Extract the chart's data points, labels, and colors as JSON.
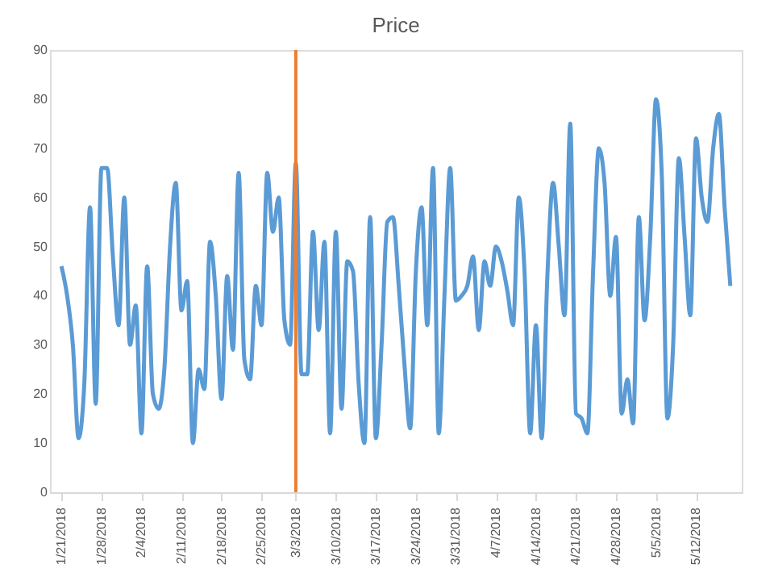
{
  "chart_data": {
    "type": "line",
    "title": "Price",
    "x": [
      "2018-01-21",
      "2018-01-22",
      "2018-01-23",
      "2018-01-24",
      "2018-01-25",
      "2018-01-26",
      "2018-01-27",
      "2018-01-28",
      "2018-01-29",
      "2018-01-30",
      "2018-01-31",
      "2018-02-01",
      "2018-02-02",
      "2018-02-03",
      "2018-02-04",
      "2018-02-05",
      "2018-02-06",
      "2018-02-07",
      "2018-02-08",
      "2018-02-09",
      "2018-02-10",
      "2018-02-11",
      "2018-02-12",
      "2018-02-13",
      "2018-02-14",
      "2018-02-15",
      "2018-02-16",
      "2018-02-17",
      "2018-02-18",
      "2018-02-19",
      "2018-02-20",
      "2018-02-21",
      "2018-02-22",
      "2018-02-23",
      "2018-02-24",
      "2018-02-25",
      "2018-02-26",
      "2018-02-27",
      "2018-02-28",
      "2018-03-01",
      "2018-03-02",
      "2018-03-03",
      "2018-03-04",
      "2018-03-05",
      "2018-03-06",
      "2018-03-07",
      "2018-03-08",
      "2018-03-09",
      "2018-03-10",
      "2018-03-11",
      "2018-03-12",
      "2018-03-13",
      "2018-03-14",
      "2018-03-15",
      "2018-03-16",
      "2018-03-17",
      "2018-03-18",
      "2018-03-19",
      "2018-03-20",
      "2018-03-21",
      "2018-03-22",
      "2018-03-23",
      "2018-03-24",
      "2018-03-25",
      "2018-03-26",
      "2018-03-27",
      "2018-03-28",
      "2018-03-29",
      "2018-03-30",
      "2018-03-31",
      "2018-04-01",
      "2018-04-02",
      "2018-04-03",
      "2018-04-04",
      "2018-04-05",
      "2018-04-06",
      "2018-04-07",
      "2018-04-08",
      "2018-04-09",
      "2018-04-10",
      "2018-04-11",
      "2018-04-12",
      "2018-04-13",
      "2018-04-14",
      "2018-04-15",
      "2018-04-16",
      "2018-04-17",
      "2018-04-18",
      "2018-04-19",
      "2018-04-20",
      "2018-04-21",
      "2018-04-22",
      "2018-04-23",
      "2018-04-24",
      "2018-04-25",
      "2018-04-26",
      "2018-04-27",
      "2018-04-28",
      "2018-04-29",
      "2018-04-30",
      "2018-05-01",
      "2018-05-02",
      "2018-05-03",
      "2018-05-04",
      "2018-05-05",
      "2018-05-06",
      "2018-05-07",
      "2018-05-08",
      "2018-05-09",
      "2018-05-10",
      "2018-05-11",
      "2018-05-12",
      "2018-05-13",
      "2018-05-14",
      "2018-05-15",
      "2018-05-16",
      "2018-05-17",
      "2018-05-18"
    ],
    "series": [
      {
        "color": "#5b9bd5",
        "values": [
          46,
          40,
          30,
          11,
          22,
          58,
          18,
          66,
          66,
          48,
          34,
          60,
          30,
          38,
          12,
          46,
          20,
          17,
          25,
          50,
          63,
          37,
          43,
          10,
          25,
          21,
          51,
          40,
          19,
          44,
          29,
          65,
          27,
          23,
          42,
          34,
          65,
          53,
          60,
          35,
          30,
          67,
          24,
          24,
          53,
          33,
          51,
          12,
          53,
          17,
          47,
          45,
          22,
          10,
          56,
          11,
          30,
          55,
          56,
          42,
          26,
          13,
          45,
          58,
          34,
          66,
          12,
          40,
          66,
          39,
          40,
          42,
          48,
          33,
          47,
          42,
          50,
          47,
          41,
          34,
          60,
          45,
          12,
          34,
          11,
          44,
          63,
          50,
          36,
          75,
          16,
          15,
          12,
          45,
          70,
          63,
          40,
          52,
          16,
          23,
          14,
          56,
          35,
          52,
          80,
          65,
          15,
          30,
          68,
          52,
          36,
          72,
          60,
          55,
          70,
          77,
          58,
          42
        ]
      }
    ],
    "xlim": [
      "2018-01-19",
      "2018-05-20"
    ],
    "xticks": [
      {
        "value": "2018-01-21",
        "label": "1/21/2018"
      },
      {
        "value": "2018-01-28",
        "label": "1/28/2018"
      },
      {
        "value": "2018-02-04",
        "label": "2/4/2018"
      },
      {
        "value": "2018-02-11",
        "label": "2/11/2018"
      },
      {
        "value": "2018-02-18",
        "label": "2/18/2018"
      },
      {
        "value": "2018-02-25",
        "label": "2/25/2018"
      },
      {
        "value": "2018-03-03",
        "label": "3/3/2018"
      },
      {
        "value": "2018-03-10",
        "label": "3/10/2018"
      },
      {
        "value": "2018-03-17",
        "label": "3/17/2018"
      },
      {
        "value": "2018-03-24",
        "label": "3/24/2018"
      },
      {
        "value": "2018-03-31",
        "label": "3/31/2018"
      },
      {
        "value": "2018-04-07",
        "label": "4/7/2018"
      },
      {
        "value": "2018-04-14",
        "label": "4/14/2018"
      },
      {
        "value": "2018-04-21",
        "label": "4/21/2018"
      },
      {
        "value": "2018-04-28",
        "label": "4/28/2018"
      },
      {
        "value": "2018-05-05",
        "label": "5/5/2018"
      },
      {
        "value": "2018-05-12",
        "label": "5/12/2018"
      }
    ],
    "ylim": [
      0,
      90
    ],
    "yticks": [
      0,
      10,
      20,
      30,
      40,
      50,
      60,
      70,
      80,
      90
    ],
    "grid": false,
    "legend": false,
    "marker": "none",
    "line_style": "solid",
    "ref_lines": [
      {
        "axis": "x",
        "value": "2018-03-03",
        "color": "#ed7d31"
      }
    ]
  }
}
